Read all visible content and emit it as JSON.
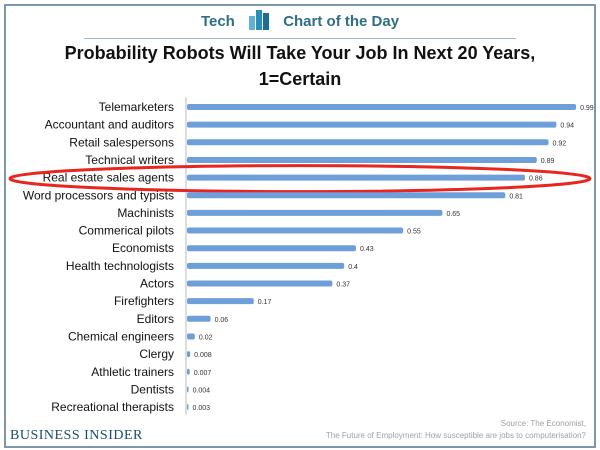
{
  "header": {
    "brand_left": "Tech",
    "brand_right": "Chart of the Day",
    "logo_icon": "bar-chart-icon"
  },
  "footer": {
    "publisher": "BUSINESS INSIDER",
    "source_line1": "Source: The Economist,",
    "source_line2": "The Future of Employment: How susceptible are jobs to computerisation?"
  },
  "colors": {
    "bar": "#6f9fd8",
    "highlight": "#e8251f",
    "brand": "#2e6f86"
  },
  "chart_data": {
    "type": "bar",
    "orientation": "horizontal",
    "title": "Probability Robots Will Take Your Job In Next 20 Years, 1=Certain",
    "xlim": [
      0,
      1
    ],
    "highlighted_category": "Real estate sales agents",
    "categories": [
      "Telemarketers",
      "Accountant and auditors",
      "Retail salespersons",
      "Technical writers",
      "Real estate sales agents",
      "Word processors and typists",
      "Machinists",
      "Commerical pilots",
      "Economists",
      "Health technologists",
      "Actors",
      "Firefighters",
      "Editors",
      "Chemical engineers",
      "Clergy",
      "Athletic trainers",
      "Dentists",
      "Recreational therapists"
    ],
    "values": [
      0.99,
      0.94,
      0.92,
      0.89,
      0.86,
      0.81,
      0.65,
      0.55,
      0.43,
      0.4,
      0.37,
      0.17,
      0.06,
      0.02,
      0.008,
      0.007,
      0.004,
      0.003
    ],
    "labels": [
      "0.99",
      "0.94",
      "0.92",
      "0.89",
      "0.86",
      "0.81",
      "0.65",
      "0.55",
      "0.43",
      "0.4",
      "0.37",
      "0.17",
      "0.06",
      "0.02",
      "0.008",
      "0.007",
      "0.004",
      "0.003"
    ]
  }
}
